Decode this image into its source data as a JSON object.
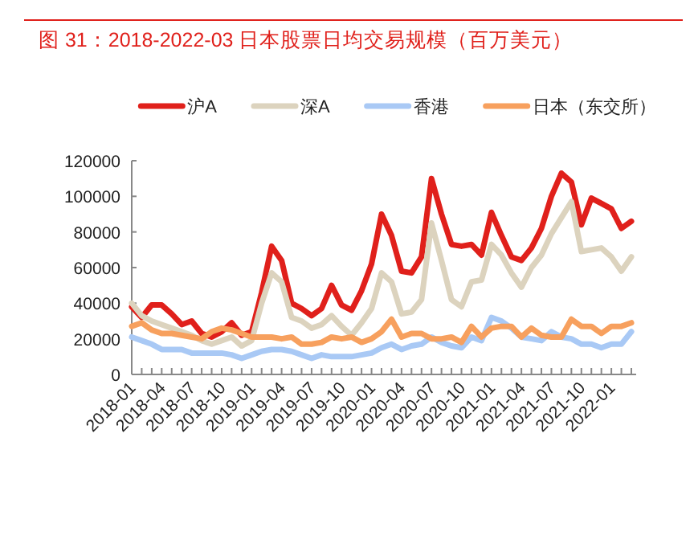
{
  "chart_data": {
    "type": "line",
    "title": "图 31：2018-2022-03 日本股票日均交易规模（百万美元）",
    "categories": [
      "2018-01",
      null,
      null,
      "2018-04",
      null,
      null,
      "2018-07",
      null,
      null,
      "2018-10",
      null,
      null,
      "2019-01",
      null,
      null,
      "2019-04",
      null,
      null,
      "2019-07",
      null,
      null,
      "2019-10",
      null,
      null,
      "2020-01",
      null,
      null,
      "2020-04",
      null,
      null,
      "2020-07",
      null,
      null,
      "2020-10",
      null,
      null,
      "2021-01",
      null,
      null,
      "2021-04",
      null,
      null,
      "2021-07",
      null,
      null,
      "2021-10",
      null,
      null,
      "2022-01",
      null,
      null
    ],
    "ylim": [
      0,
      120000
    ],
    "yticks": [
      0,
      20000,
      40000,
      60000,
      80000,
      100000,
      120000
    ],
    "legend": "top",
    "grid": false,
    "marker": "none",
    "line_style": "solid",
    "series": [
      {
        "name": "沪A",
        "color": "#e0201b",
        "values": [
          38000,
          32000,
          39000,
          39000,
          34000,
          28000,
          30000,
          23000,
          21000,
          24000,
          29000,
          22000,
          24000,
          46000,
          72000,
          64000,
          40000,
          37000,
          33000,
          37000,
          50000,
          39000,
          36000,
          47000,
          62000,
          90000,
          78000,
          58000,
          57000,
          66000,
          110000,
          90000,
          73000,
          72000,
          73000,
          67000,
          91000,
          78000,
          66000,
          64000,
          71000,
          82000,
          100000,
          113000,
          108000,
          84000,
          99000,
          96000,
          93000,
          82000,
          86000
        ]
      },
      {
        "name": "深A",
        "color": "#dcd3be",
        "values": [
          40000,
          33000,
          30000,
          28000,
          26000,
          24000,
          22000,
          19000,
          17000,
          19000,
          21000,
          16000,
          19000,
          40000,
          57000,
          52000,
          32000,
          30000,
          26000,
          28000,
          33000,
          27000,
          22000,
          29000,
          37000,
          57000,
          52000,
          34000,
          35000,
          42000,
          85000,
          64000,
          42000,
          38000,
          52000,
          53000,
          73000,
          67000,
          57000,
          49000,
          60000,
          67000,
          79000,
          88000,
          97000,
          69000,
          70000,
          71000,
          66000,
          58000,
          66000
        ]
      },
      {
        "name": "香港",
        "color": "#a9c9f5",
        "values": [
          21000,
          19000,
          17000,
          14000,
          14000,
          14000,
          12000,
          12000,
          12000,
          12000,
          11000,
          9000,
          11000,
          13000,
          14000,
          14000,
          13000,
          11000,
          9000,
          11000,
          10000,
          10000,
          10000,
          11000,
          12000,
          15000,
          17000,
          14000,
          16000,
          17000,
          21000,
          18000,
          16000,
          15000,
          21000,
          19000,
          32000,
          30000,
          26000,
          21000,
          20000,
          19000,
          24000,
          21000,
          20000,
          17000,
          17000,
          15000,
          17000,
          17000,
          24000
        ]
      },
      {
        "name": "日本（东交所）",
        "color": "#f7a05e",
        "values": [
          27000,
          29000,
          25000,
          23000,
          23000,
          22000,
          21000,
          20000,
          24000,
          26000,
          25000,
          23000,
          21000,
          21000,
          21000,
          20000,
          21000,
          17000,
          17000,
          18000,
          21000,
          20000,
          21000,
          18000,
          20000,
          24000,
          31000,
          21000,
          23000,
          23000,
          20000,
          20000,
          21000,
          18000,
          27000,
          21000,
          26000,
          27000,
          27000,
          21000,
          26000,
          22000,
          21000,
          21000,
          31000,
          27000,
          27000,
          23000,
          27000,
          27000,
          29000
        ]
      }
    ]
  }
}
